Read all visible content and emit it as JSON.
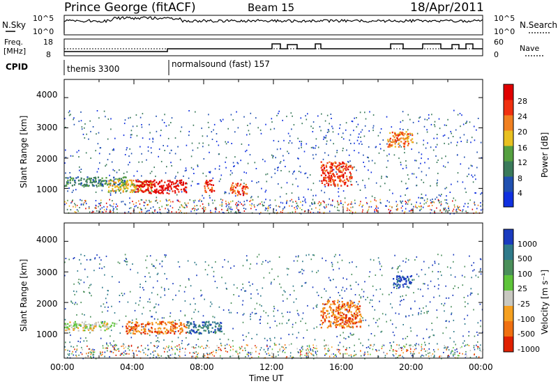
{
  "header": {
    "station": "Prince George (fitACF)",
    "beam": "Beam 15",
    "date": "18/Apr/2011"
  },
  "nsky_panel": {
    "left_label": "N.Sky",
    "right_label": "N.Search",
    "left_ticks": [
      "10^5",
      "10^0"
    ],
    "right_ticks": [
      "10^5",
      "10^0"
    ]
  },
  "freq_panel": {
    "left_label_1": "Freq.",
    "left_label_2": "[MHz]",
    "right_label": "Nave",
    "left_ticks": [
      "18",
      "8"
    ],
    "right_ticks": [
      "60",
      "0"
    ]
  },
  "cpid_panel": {
    "label": "CPID",
    "segments": [
      "themis 3300",
      "normalsound (fast) 157"
    ]
  },
  "power_panel": {
    "ylabel": "Slant Range [km]",
    "yticks": [
      "1000",
      "2000",
      "3000",
      "4000"
    ],
    "colorbar_label": "Power [dB]",
    "colorbar_ticks": [
      "4",
      "8",
      "12",
      "16",
      "20",
      "24",
      "28"
    ]
  },
  "velocity_panel": {
    "ylabel": "Slant Range [km]",
    "yticks": [
      "1000",
      "2000",
      "3000",
      "4000"
    ],
    "colorbar_label": "Velocity [m s⁻¹]",
    "colorbar_ticks": [
      "1000",
      "500",
      "100",
      "25",
      "-25",
      "-100",
      "-500",
      "-1000"
    ]
  },
  "xaxis": {
    "label": "Time UT",
    "ticks": [
      "00:00",
      "04:00",
      "08:00",
      "12:00",
      "16:00",
      "20:00",
      "00:00"
    ]
  },
  "colors": {
    "power_scale": [
      "#1030e0",
      "#2050b0",
      "#3a7a5a",
      "#55a040",
      "#e8c020",
      "#f08020",
      "#f03010",
      "#e00000"
    ],
    "velocity_scale": [
      "#1a3bbf",
      "#2f7a8a",
      "#4a8f5a",
      "#5ec43a",
      "#c8c8c0",
      "#f5a020",
      "#f07010",
      "#e02000"
    ]
  },
  "chart_data": [
    {
      "type": "heatmap",
      "title": "Power",
      "xlabel": "Time UT",
      "ylabel": "Slant Range [km]",
      "xlim": [
        0,
        24
      ],
      "ylim": [
        180,
        4600
      ],
      "colorbar": {
        "label": "Power [dB]",
        "range": [
          0,
          30
        ]
      },
      "regions": [
        {
          "t": [
            0,
            3.5
          ],
          "r": [
            1100,
            1400
          ],
          "v": 10
        },
        {
          "t": [
            2.5,
            5
          ],
          "r": [
            900,
            1300
          ],
          "v": 18
        },
        {
          "t": [
            4,
            7
          ],
          "r": [
            850,
            1300
          ],
          "v": 28
        },
        {
          "t": [
            8,
            8.6
          ],
          "r": [
            900,
            1300
          ],
          "v": 24
        },
        {
          "t": [
            9.5,
            10.5
          ],
          "r": [
            800,
            1200
          ],
          "v": 26
        },
        {
          "t": [
            14.7,
            16.5
          ],
          "r": [
            1100,
            1900
          ],
          "v": 26
        },
        {
          "t": [
            18.5,
            20
          ],
          "r": [
            2400,
            2900
          ],
          "v": 20
        }
      ]
    },
    {
      "type": "heatmap",
      "title": "Velocity",
      "xlabel": "Time UT",
      "ylabel": "Slant Range [km]",
      "xlim": [
        0,
        24
      ],
      "ylim": [
        180,
        4600
      ],
      "colorbar": {
        "label": "Velocity [m s⁻¹]",
        "range": [
          -1000,
          1000
        ]
      },
      "regions": [
        {
          "t": [
            0,
            3
          ],
          "r": [
            1100,
            1400
          ],
          "v": 0
        },
        {
          "t": [
            3.5,
            7
          ],
          "r": [
            1000,
            1400
          ],
          "v": -150
        },
        {
          "t": [
            7,
            9
          ],
          "r": [
            1000,
            1400
          ],
          "v": 300
        },
        {
          "t": [
            14.7,
            17
          ],
          "r": [
            1200,
            2100
          ],
          "v": -150
        },
        {
          "t": [
            18.8,
            20
          ],
          "r": [
            2500,
            2900
          ],
          "v": 800
        }
      ]
    }
  ]
}
